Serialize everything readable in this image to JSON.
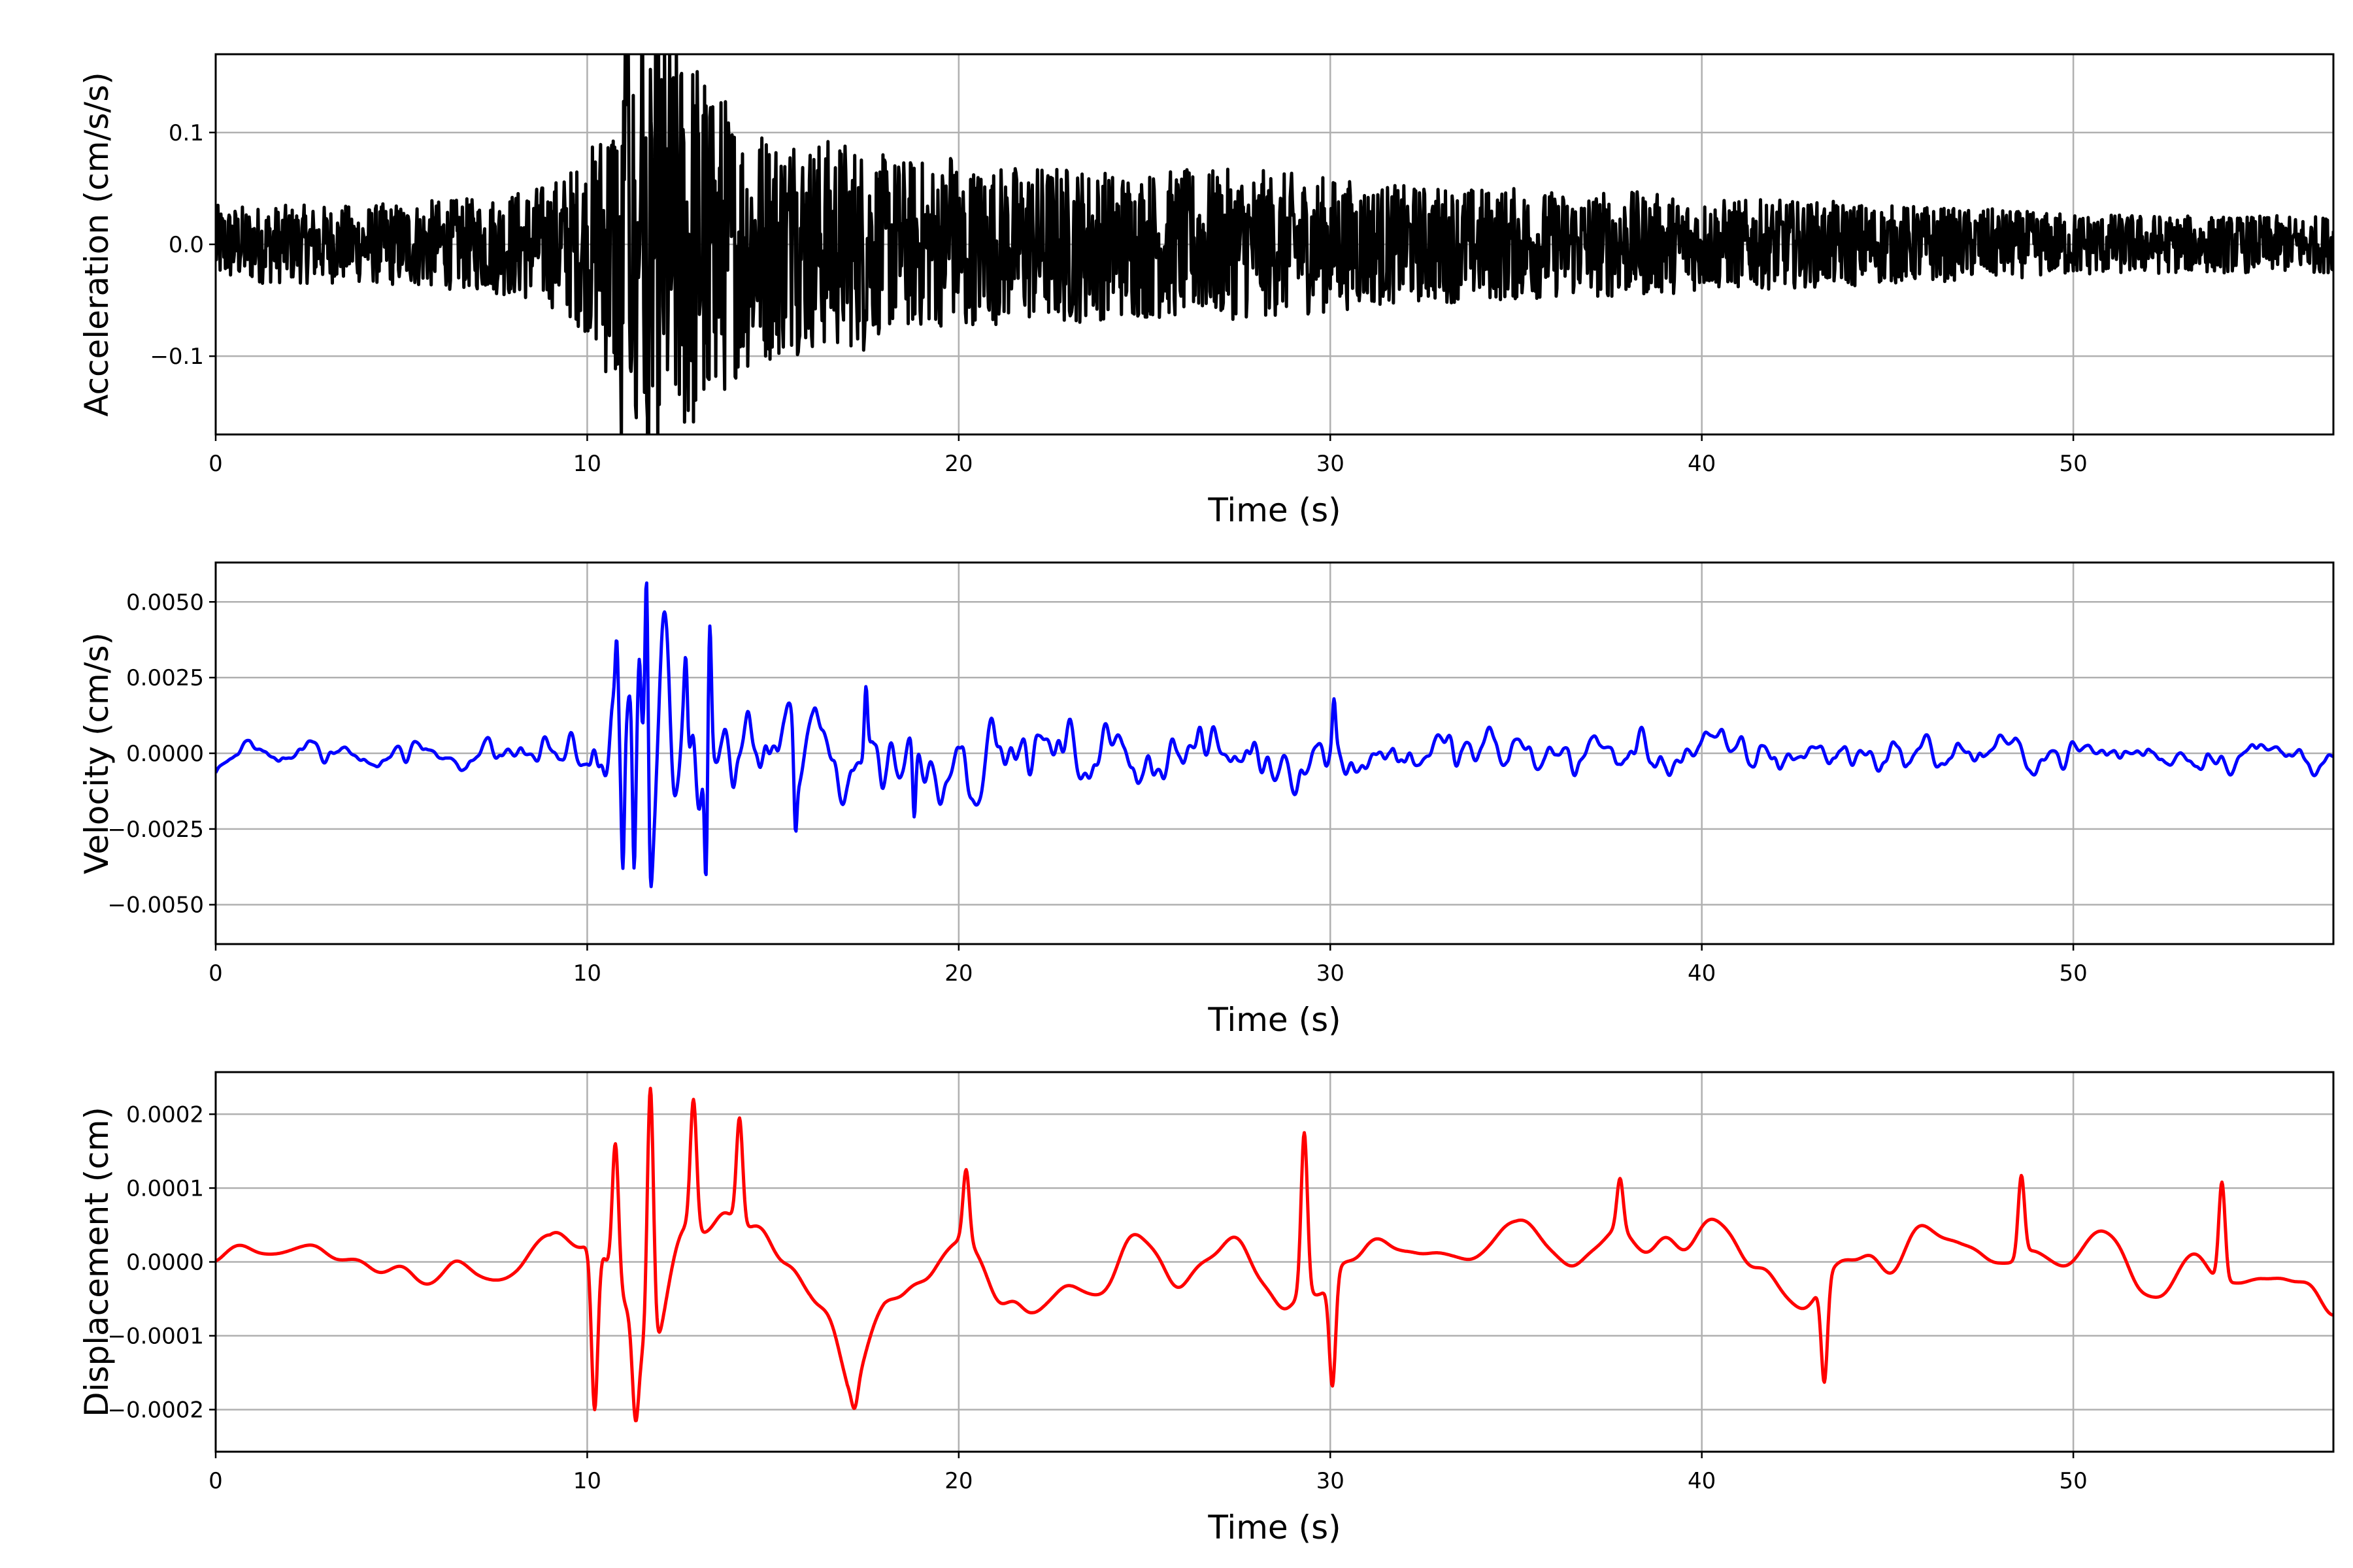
{
  "chart_data": [
    {
      "type": "line",
      "name": "acceleration",
      "xlabel": "Time (s)",
      "ylabel": "Acceleration (cm/s/s)",
      "xlim": [
        0,
        57
      ],
      "ylim": [
        -0.17,
        0.17
      ],
      "xticks": [
        0,
        10,
        20,
        30,
        40,
        50
      ],
      "xtick_labels": [
        "0",
        "10",
        "20",
        "30",
        "40",
        "50"
      ],
      "yticks": [
        0.1,
        0.0,
        -0.1
      ],
      "ytick_labels": [
        "0.1",
        "0.0",
        "−0.1"
      ],
      "grid": true,
      "color": "#000000",
      "envelope_per_second": [
        0.022,
        0.022,
        0.022,
        0.022,
        0.022,
        0.024,
        0.025,
        0.026,
        0.03,
        0.035,
        0.05,
        0.1,
        0.12,
        0.11,
        0.075,
        0.065,
        0.06,
        0.06,
        0.05,
        0.048,
        0.045,
        0.045,
        0.045,
        0.045,
        0.042,
        0.042,
        0.042,
        0.042,
        0.042,
        0.04,
        0.038,
        0.035,
        0.033,
        0.033,
        0.032,
        0.032,
        0.03,
        0.03,
        0.03,
        0.028,
        0.026,
        0.025,
        0.025,
        0.024,
        0.024,
        0.022,
        0.022,
        0.02,
        0.02,
        0.018,
        0.018,
        0.017,
        0.017,
        0.016,
        0.016,
        0.016,
        0.016,
        0.016
      ],
      "peaks": [
        [
          10.9,
          -0.11
        ],
        [
          11.05,
          0.125
        ],
        [
          11.45,
          0.11
        ],
        [
          11.32,
          -0.155
        ],
        [
          11.58,
          0.135
        ],
        [
          11.62,
          -0.155
        ],
        [
          11.72,
          0.11
        ],
        [
          13.25,
          -0.12
        ],
        [
          13.38,
          0.123
        ],
        [
          13.45,
          -0.118
        ],
        [
          15.55,
          0.085
        ],
        [
          17.45,
          -0.083
        ],
        [
          19.8,
          0.075
        ],
        [
          20.2,
          -0.07
        ]
      ]
    },
    {
      "type": "line",
      "name": "velocity",
      "xlabel": "Time (s)",
      "ylabel": "Velocity (cm/s)",
      "xlim": [
        0,
        57
      ],
      "ylim": [
        -0.0063,
        0.0063
      ],
      "xticks": [
        0,
        10,
        20,
        30,
        40,
        50
      ],
      "xtick_labels": [
        "0",
        "10",
        "20",
        "30",
        "40",
        "50"
      ],
      "yticks": [
        0.005,
        0.0025,
        0.0,
        -0.0025,
        -0.005
      ],
      "ytick_labels": [
        "0.0050",
        "0.0025",
        "0.0000",
        "−0.0025",
        "−0.0050"
      ],
      "grid": true,
      "color": "#0000ff",
      "envelope_per_second": [
        0.0004,
        0.0004,
        0.0004,
        0.0004,
        0.0004,
        0.00045,
        0.00045,
        0.0005,
        0.0005,
        0.0006,
        0.0012,
        0.0025,
        0.003,
        0.0025,
        0.0018,
        0.0018,
        0.0017,
        0.0017,
        0.0015,
        0.0013,
        0.0012,
        0.0011,
        0.001,
        0.001,
        0.001,
        0.001,
        0.001,
        0.001,
        0.001,
        0.001,
        0.0009,
        0.0009,
        0.0008,
        0.0008,
        0.0008,
        0.0008,
        0.0008,
        0.0008,
        0.0008,
        0.0008,
        0.0007,
        0.0007,
        0.0007,
        0.0007,
        0.0006,
        0.0006,
        0.0006,
        0.0006,
        0.0006,
        0.0005,
        0.0005,
        0.0005,
        0.0005,
        0.0005,
        0.0005,
        0.0005,
        0.0005,
        0.0005
      ],
      "peaks": [
        [
          10.8,
          0.0037
        ],
        [
          10.95,
          -0.0038
        ],
        [
          11.25,
          -0.0038
        ],
        [
          11.4,
          0.0031
        ],
        [
          11.6,
          0.0057
        ],
        [
          11.7,
          -0.0041
        ],
        [
          12.65,
          0.0031
        ],
        [
          13.2,
          -0.0042
        ],
        [
          13.3,
          0.0042
        ],
        [
          15.6,
          -0.0025
        ],
        [
          17.5,
          0.0022
        ],
        [
          18.8,
          -0.0021
        ],
        [
          30.1,
          0.0018
        ]
      ]
    },
    {
      "type": "line",
      "name": "displacement",
      "xlabel": "Time (s)",
      "ylabel": "Displacement (cm)",
      "xlim": [
        0,
        57
      ],
      "ylim": [
        -0.000257,
        0.000257
      ],
      "xticks": [
        0,
        10,
        20,
        30,
        40,
        50
      ],
      "xtick_labels": [
        "0",
        "10",
        "20",
        "30",
        "40",
        "50"
      ],
      "yticks": [
        0.0002,
        0.0001,
        0.0,
        -0.0001,
        -0.0002
      ],
      "ytick_labels": [
        "0.0002",
        "0.0001",
        "0.0000",
        "−0.0001",
        "−0.0002"
      ],
      "grid": true,
      "color": "#ff0000",
      "envelope_per_second": [
        3e-05,
        3e-05,
        3e-05,
        3e-05,
        3e-05,
        4e-05,
        4e-05,
        5e-05,
        4e-05,
        4e-05,
        8e-05,
        0.00015,
        0.00016,
        0.00015,
        0.00013,
        0.0001,
        9e-05,
        0.00011,
        8e-05,
        8e-05,
        9e-05,
        8e-05,
        7e-05,
        7e-05,
        6e-05,
        6e-05,
        7e-05,
        7e-05,
        8e-05,
        9e-05,
        8e-05,
        8e-05,
        6e-05,
        6e-05,
        6e-05,
        6e-05,
        7e-05,
        7e-05,
        7e-05,
        7e-05,
        7e-05,
        7e-05,
        7e-05,
        8e-05,
        7e-05,
        7e-05,
        7e-05,
        7e-05,
        8e-05,
        7e-05,
        6e-05,
        6e-05,
        6e-05,
        6e-05,
        6e-05,
        5e-05,
        5e-05,
        5e-05
      ],
      "peaks": [
        [
          10.2,
          -0.0002
        ],
        [
          10.75,
          0.00016
        ],
        [
          11.3,
          -0.000215
        ],
        [
          11.7,
          0.000235
        ],
        [
          12.85,
          0.00022
        ],
        [
          14.1,
          0.000195
        ],
        [
          17.2,
          -0.000198
        ],
        [
          20.2,
          0.000125
        ],
        [
          29.3,
          0.000175
        ],
        [
          30.05,
          -0.000168
        ],
        [
          37.8,
          0.000113
        ],
        [
          43.3,
          -0.000163
        ],
        [
          48.6,
          0.000117
        ],
        [
          54.0,
          0.000108
        ]
      ]
    }
  ]
}
